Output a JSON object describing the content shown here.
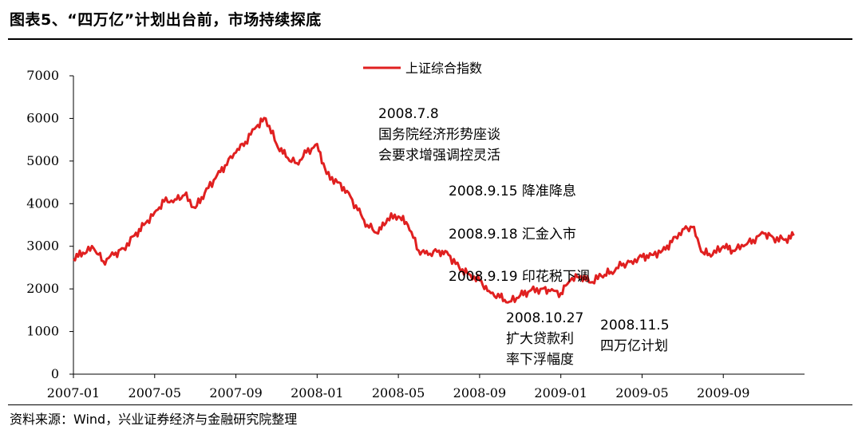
{
  "figure": {
    "title": "图表5、“四万亿”计划出台前，市场持续探底",
    "source": "资料来源：Wind，兴业证券经济与金融研究院整理"
  },
  "chart_data": {
    "type": "line",
    "title": "",
    "xlabel": "",
    "ylabel": "",
    "ylim": [
      0,
      7000
    ],
    "yticks": [
      0,
      1000,
      2000,
      3000,
      4000,
      5000,
      6000,
      7000
    ],
    "xticks": [
      "2007-01",
      "2007-05",
      "2007-09",
      "2008-01",
      "2008-05",
      "2008-09",
      "2009-01",
      "2009-05",
      "2009-09"
    ],
    "legend_position": "top-center",
    "grid": false,
    "color": "#e02020",
    "series": [
      {
        "name": "上证综合指数",
        "x": [
          "2007-01",
          "2007-01-15",
          "2007-02",
          "2007-02-15",
          "2007-03",
          "2007-03-15",
          "2007-04",
          "2007-04-15",
          "2007-05",
          "2007-05-15",
          "2007-06",
          "2007-06-15",
          "2007-07",
          "2007-07-15",
          "2007-08",
          "2007-08-15",
          "2007-09",
          "2007-09-15",
          "2007-10",
          "2007-10-15",
          "2007-11",
          "2007-11-15",
          "2007-12",
          "2007-12-15",
          "2008-01",
          "2008-01-15",
          "2008-02",
          "2008-02-15",
          "2008-03",
          "2008-03-15",
          "2008-04",
          "2008-04-15",
          "2008-05",
          "2008-05-15",
          "2008-06",
          "2008-06-15",
          "2008-07",
          "2008-07-15",
          "2008-08",
          "2008-08-15",
          "2008-09",
          "2008-09-15",
          "2008-10",
          "2008-10-15",
          "2008-11",
          "2008-11-15",
          "2008-12",
          "2008-12-15",
          "2009-01",
          "2009-01-15",
          "2009-02",
          "2009-02-15",
          "2009-03",
          "2009-03-15",
          "2009-04",
          "2009-04-15",
          "2009-05",
          "2009-05-15",
          "2009-06",
          "2009-06-15",
          "2009-07",
          "2009-07-15",
          "2009-08",
          "2009-08-15",
          "2009-09",
          "2009-09-15",
          "2009-10",
          "2009-10-15",
          "2009-11",
          "2009-11-15",
          "2009-12",
          "2009-12-15"
        ],
        "values": [
          2700,
          2850,
          2950,
          2650,
          2800,
          2950,
          3250,
          3500,
          3800,
          4050,
          4100,
          4200,
          3900,
          4250,
          4600,
          4900,
          5200,
          5450,
          5800,
          6000,
          5400,
          5100,
          4950,
          5200,
          5400,
          4700,
          4500,
          4300,
          3850,
          3500,
          3300,
          3650,
          3700,
          3500,
          2900,
          2800,
          2900,
          2800,
          2500,
          2350,
          2200,
          1950,
          1800,
          1700,
          1850,
          1950,
          2000,
          1950,
          1900,
          2200,
          2300,
          2150,
          2300,
          2400,
          2550,
          2650,
          2750,
          2800,
          2900,
          3100,
          3400,
          3450,
          2850,
          2800,
          3000,
          2900,
          3000,
          3150,
          3300,
          3200,
          3150,
          3250
        ]
      }
    ],
    "annotations": [
      [
        "2008.7.8",
        "国务院经济形势座谈",
        "会要求增强调控灵活"
      ],
      [
        "2008.9.15 降准降息"
      ],
      [
        "2008.9.18 汇金入市"
      ],
      [
        "2008.9.19 印花税下调"
      ],
      [
        "2008.10.27",
        "扩大贷款利",
        "率下浮幅度"
      ],
      [
        "2008.11.5",
        "四万亿计划"
      ]
    ]
  }
}
